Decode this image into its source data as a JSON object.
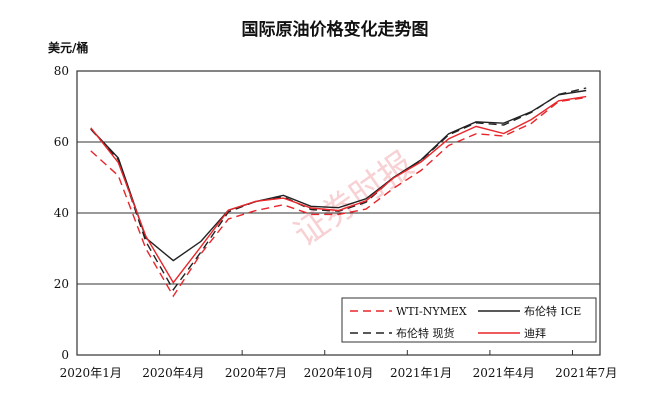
{
  "chart_data": {
    "type": "line",
    "title": "国际原油价格变化走势图",
    "ylabel": "美元/桶",
    "xlabel": "",
    "ylim": [
      0,
      80
    ],
    "yticks": [
      0,
      20,
      40,
      60,
      80
    ],
    "grid": true,
    "legend_position": "bottom-right",
    "watermark": "证券时报",
    "x": [
      "2020-01",
      "2020-02",
      "2020-03",
      "2020-04",
      "2020-05",
      "2020-06",
      "2020-07",
      "2020-08",
      "2020-09",
      "2020-10",
      "2020-11",
      "2020-12",
      "2021-01",
      "2021-02",
      "2021-03",
      "2021-04",
      "2021-05",
      "2021-06",
      "2021-07"
    ],
    "xtick_labels": [
      "2020年1月",
      "2020年4月",
      "2020年7月",
      "2020年10月",
      "2021年1月",
      "2021年4月",
      "2021年7月"
    ],
    "series": [
      {
        "name": "WTI-NYMEX",
        "color": "#e8262b",
        "dash": true,
        "values": [
          57.5,
          50.5,
          30,
          16.6,
          28.5,
          38.3,
          40.7,
          42.3,
          39.6,
          39.6,
          41.1,
          47,
          52,
          59,
          62.3,
          61.7,
          65.2,
          71.4,
          72.5
        ]
      },
      {
        "name": "布伦特 ICE",
        "color": "#222222",
        "dash": false,
        "values": [
          63.7,
          55.5,
          33,
          26.6,
          32,
          40.8,
          43.2,
          45,
          41.9,
          41.5,
          44,
          50,
          55,
          62.3,
          65.7,
          65.3,
          68.5,
          73.3,
          74.5
        ]
      },
      {
        "name": "布伦特 现货",
        "color": "#222222",
        "dash": true,
        "values": [
          63.6,
          55,
          32,
          18.4,
          29,
          40.3,
          43.3,
          44.6,
          41,
          40.5,
          43,
          50,
          54.8,
          62,
          65.4,
          64.8,
          68.3,
          73.4,
          75.2
        ]
      },
      {
        "name": "迪拜",
        "color": "#e8262b",
        "dash": false,
        "values": [
          64,
          54.2,
          33.5,
          20.4,
          30.5,
          40.8,
          43.3,
          44.2,
          41.4,
          40.7,
          43.4,
          49.9,
          54.4,
          60.9,
          64.4,
          62.4,
          66.3,
          71.6,
          72.8
        ]
      }
    ]
  }
}
